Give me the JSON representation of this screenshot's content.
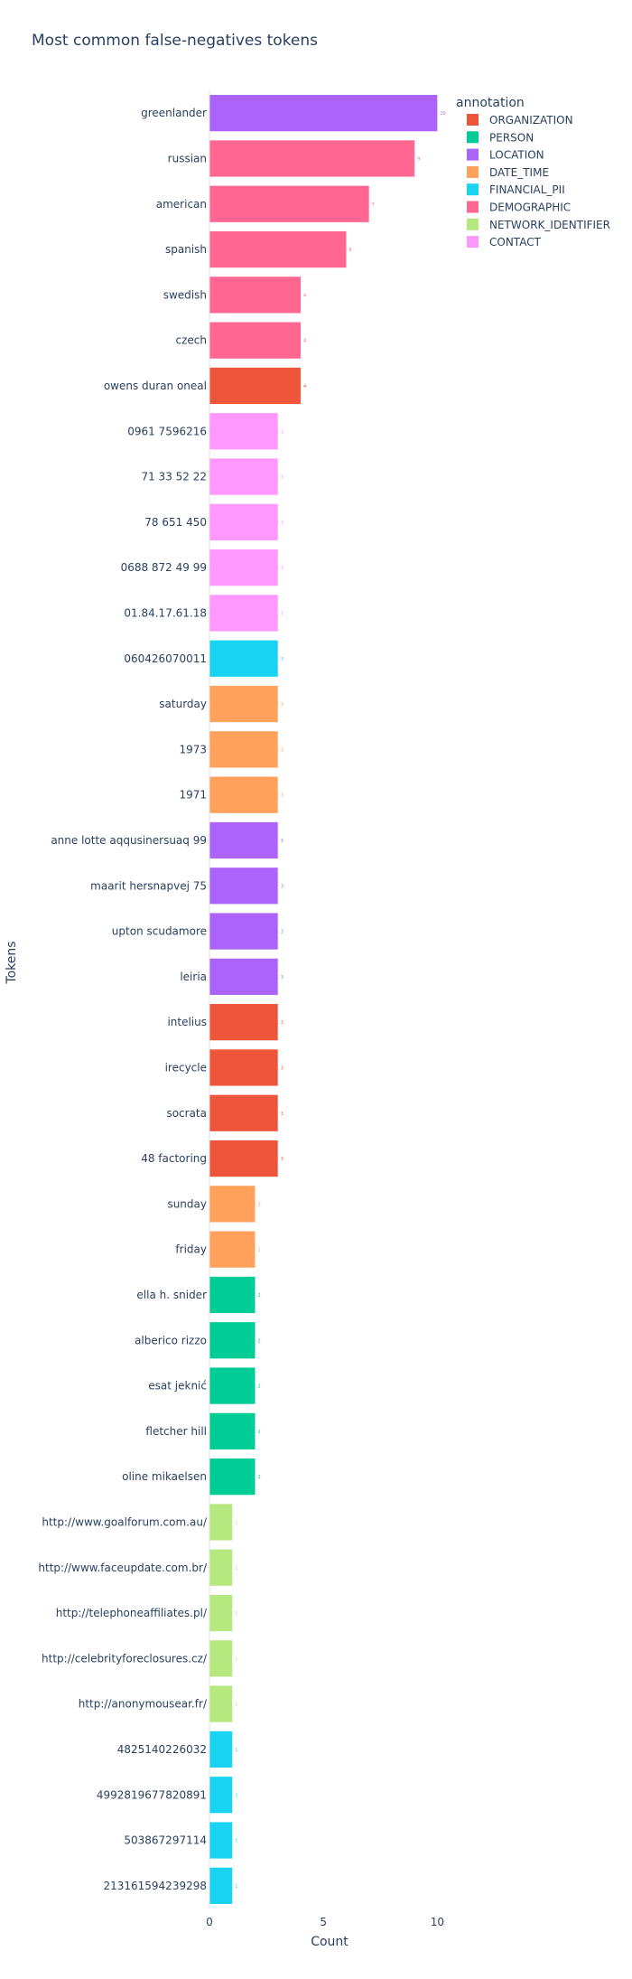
{
  "chart_data": {
    "type": "bar",
    "orientation": "horizontal",
    "title": "Most common false-negatives tokens",
    "xlabel": "Count",
    "ylabel": "Tokens",
    "xlim": [
      0,
      10.5
    ],
    "xticks": [
      0,
      5,
      10
    ],
    "legend": {
      "title": "annotation",
      "placement": "top-right",
      "items": [
        {
          "name": "ORGANIZATION",
          "color": "#EF553B"
        },
        {
          "name": "PERSON",
          "color": "#00CC96"
        },
        {
          "name": "LOCATION",
          "color": "#AB63FA"
        },
        {
          "name": "DATE_TIME",
          "color": "#FFA15A"
        },
        {
          "name": "FINANCIAL_PII",
          "color": "#19D3F3"
        },
        {
          "name": "DEMOGRAPHIC",
          "color": "#FF6692"
        },
        {
          "name": "NETWORK_IDENTIFIER",
          "color": "#B6E880"
        },
        {
          "name": "CONTACT",
          "color": "#FF97FF"
        }
      ]
    },
    "bars": [
      {
        "token": "greenlander",
        "value": 10,
        "annotation": "LOCATION"
      },
      {
        "token": "russian",
        "value": 9,
        "annotation": "DEMOGRAPHIC"
      },
      {
        "token": "american",
        "value": 7,
        "annotation": "DEMOGRAPHIC"
      },
      {
        "token": "spanish",
        "value": 6,
        "annotation": "DEMOGRAPHIC"
      },
      {
        "token": "swedish",
        "value": 4,
        "annotation": "DEMOGRAPHIC"
      },
      {
        "token": "czech",
        "value": 4,
        "annotation": "DEMOGRAPHIC"
      },
      {
        "token": "owens duran oneal",
        "value": 4,
        "annotation": "ORGANIZATION"
      },
      {
        "token": "0961 7596216",
        "value": 3,
        "annotation": "CONTACT"
      },
      {
        "token": "71 33 52 22",
        "value": 3,
        "annotation": "CONTACT"
      },
      {
        "token": "78 651 450",
        "value": 3,
        "annotation": "CONTACT"
      },
      {
        "token": "0688 872 49 99",
        "value": 3,
        "annotation": "CONTACT"
      },
      {
        "token": "01.84.17.61.18",
        "value": 3,
        "annotation": "CONTACT"
      },
      {
        "token": "060426070011",
        "value": 3,
        "annotation": "FINANCIAL_PII"
      },
      {
        "token": "saturday",
        "value": 3,
        "annotation": "DATE_TIME"
      },
      {
        "token": "1973",
        "value": 3,
        "annotation": "DATE_TIME"
      },
      {
        "token": "1971",
        "value": 3,
        "annotation": "DATE_TIME"
      },
      {
        "token": "anne lotte aqqusinersuaq 99",
        "value": 3,
        "annotation": "LOCATION"
      },
      {
        "token": "maarit hersnapvej 75",
        "value": 3,
        "annotation": "LOCATION"
      },
      {
        "token": "upton scudamore",
        "value": 3,
        "annotation": "LOCATION"
      },
      {
        "token": "leiria",
        "value": 3,
        "annotation": "LOCATION"
      },
      {
        "token": "intelius",
        "value": 3,
        "annotation": "ORGANIZATION"
      },
      {
        "token": "irecycle",
        "value": 3,
        "annotation": "ORGANIZATION"
      },
      {
        "token": "socrata",
        "value": 3,
        "annotation": "ORGANIZATION"
      },
      {
        "token": "48 factoring",
        "value": 3,
        "annotation": "ORGANIZATION"
      },
      {
        "token": "sunday",
        "value": 2,
        "annotation": "DATE_TIME"
      },
      {
        "token": "friday",
        "value": 2,
        "annotation": "DATE_TIME"
      },
      {
        "token": "ella h. snider",
        "value": 2,
        "annotation": "PERSON"
      },
      {
        "token": "alberico rizzo",
        "value": 2,
        "annotation": "PERSON"
      },
      {
        "token": "esat jeknić",
        "value": 2,
        "annotation": "PERSON"
      },
      {
        "token": "fletcher hill",
        "value": 2,
        "annotation": "PERSON"
      },
      {
        "token": "oline mikaelsen",
        "value": 2,
        "annotation": "PERSON"
      },
      {
        "token": "http://www.goalforum.com.au/",
        "value": 1,
        "annotation": "NETWORK_IDENTIFIER"
      },
      {
        "token": "http://www.faceupdate.com.br/",
        "value": 1,
        "annotation": "NETWORK_IDENTIFIER"
      },
      {
        "token": "http://telephoneaffiliates.pl/",
        "value": 1,
        "annotation": "NETWORK_IDENTIFIER"
      },
      {
        "token": "http://celebrityforeclosures.cz/",
        "value": 1,
        "annotation": "NETWORK_IDENTIFIER"
      },
      {
        "token": "http://anonymousear.fr/",
        "value": 1,
        "annotation": "NETWORK_IDENTIFIER"
      },
      {
        "token": "4825140226032",
        "value": 1,
        "annotation": "FINANCIAL_PII"
      },
      {
        "token": "4992819677820891",
        "value": 1,
        "annotation": "FINANCIAL_PII"
      },
      {
        "token": "503867297114",
        "value": 1,
        "annotation": "FINANCIAL_PII"
      },
      {
        "token": "213161594239298",
        "value": 1,
        "annotation": "FINANCIAL_PII"
      }
    ]
  }
}
